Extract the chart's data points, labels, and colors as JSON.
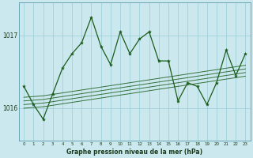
{
  "x": [
    0,
    1,
    2,
    3,
    4,
    5,
    6,
    7,
    8,
    9,
    10,
    11,
    12,
    13,
    14,
    15,
    16,
    17,
    18,
    19,
    20,
    21,
    22,
    23
  ],
  "main_line": [
    1016.3,
    1016.05,
    1015.85,
    1016.2,
    1016.55,
    1016.75,
    1016.9,
    1017.25,
    1016.85,
    1016.6,
    1017.05,
    1016.75,
    1016.95,
    1017.05,
    1016.65,
    1016.65,
    1016.1,
    1016.35,
    1016.3,
    1016.05,
    1016.35,
    1016.8,
    1016.45,
    1016.75
  ],
  "trend1": [
    1016.0,
    1016.01,
    1016.02,
    1016.04,
    1016.06,
    1016.08,
    1016.1,
    1016.12,
    1016.14,
    1016.16,
    1016.18,
    1016.2,
    1016.22,
    1016.24,
    1016.26,
    1016.28,
    1016.3,
    1016.32,
    1016.34,
    1016.36,
    1016.38,
    1016.4,
    1016.42,
    1016.44
  ],
  "trend2": [
    1016.05,
    1016.06,
    1016.07,
    1016.09,
    1016.11,
    1016.13,
    1016.15,
    1016.17,
    1016.19,
    1016.21,
    1016.23,
    1016.25,
    1016.27,
    1016.29,
    1016.31,
    1016.33,
    1016.35,
    1016.37,
    1016.39,
    1016.41,
    1016.43,
    1016.45,
    1016.47,
    1016.49
  ],
  "trend3": [
    1016.1,
    1016.11,
    1016.12,
    1016.14,
    1016.16,
    1016.18,
    1016.2,
    1016.22,
    1016.24,
    1016.26,
    1016.28,
    1016.3,
    1016.32,
    1016.34,
    1016.36,
    1016.38,
    1016.4,
    1016.42,
    1016.44,
    1016.46,
    1016.48,
    1016.5,
    1016.52,
    1016.54
  ],
  "trend4": [
    1016.15,
    1016.16,
    1016.17,
    1016.19,
    1016.21,
    1016.23,
    1016.25,
    1016.27,
    1016.29,
    1016.31,
    1016.33,
    1016.35,
    1016.37,
    1016.39,
    1016.41,
    1016.43,
    1016.45,
    1016.47,
    1016.49,
    1016.51,
    1016.53,
    1016.55,
    1016.57,
    1016.59
  ],
  "bg_color": "#cce8ef",
  "line_color": "#1a5c1a",
  "grid_color": "#99ccd6",
  "text_color": "#1a3a1a",
  "xlabel": "Graphe pression niveau de la mer (hPa)",
  "ytick_labels": [
    "1016",
    "1017"
  ],
  "ytick_vals": [
    1016.0,
    1017.0
  ],
  "ylim": [
    1015.55,
    1017.45
  ],
  "xlim": [
    -0.5,
    23.5
  ]
}
